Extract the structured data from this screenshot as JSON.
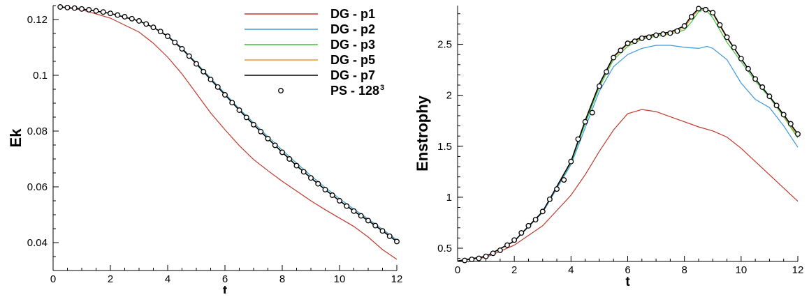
{
  "colors": {
    "DG - p1": "#c0392b",
    "DG - p2": "#3a9ad9",
    "DG - p3": "#3cc43c",
    "DG - p5": "#e8952f",
    "DG - p7": "#000000",
    "PS - 128": "#000000"
  },
  "chart_data": [
    {
      "type": "line",
      "xlabel": "t",
      "ylabel": "Ek",
      "xlim": [
        0,
        12
      ],
      "ylim": [
        0.03,
        0.125
      ],
      "xticks": [
        "0",
        "2",
        "4",
        "6",
        "8",
        "10",
        "12"
      ],
      "yticks": [
        "0.04",
        "0.06",
        "0.08",
        "0.1",
        "0.12"
      ],
      "grid": false,
      "legend": {
        "position": "top-right",
        "entries": [
          {
            "label": "DG - p1",
            "marker": "line"
          },
          {
            "label": "DG - p2",
            "marker": "line"
          },
          {
            "label": "DG - p3",
            "marker": "line"
          },
          {
            "label": "DG - p5",
            "marker": "line"
          },
          {
            "label": "DG - p7",
            "marker": "line"
          },
          {
            "label": "PS - 128",
            "sup": "3",
            "marker": "circle"
          }
        ]
      },
      "series": [
        {
          "name": "DG - p1",
          "x": [
            0.25,
            1,
            2,
            3,
            3.5,
            4,
            4.5,
            5,
            5.5,
            6,
            6.5,
            7,
            7.5,
            8,
            8.5,
            9,
            9.5,
            10,
            10.5,
            11,
            11.5,
            12
          ],
          "y": [
            0.1245,
            0.1235,
            0.1205,
            0.1155,
            0.1115,
            0.1065,
            0.1005,
            0.0935,
            0.0865,
            0.0805,
            0.0748,
            0.0698,
            0.0658,
            0.062,
            0.0585,
            0.055,
            0.0518,
            0.0488,
            0.0458,
            0.042,
            0.0375,
            0.034
          ]
        },
        {
          "name": "DG - p2",
          "x": [
            0.25,
            1,
            2,
            3,
            3.5,
            4,
            4.5,
            5,
            5.5,
            6,
            6.5,
            7,
            7.5,
            8,
            8.5,
            9,
            9.5,
            10,
            10.5,
            11,
            11.5,
            12
          ],
          "y": [
            0.1245,
            0.1238,
            0.1222,
            0.1195,
            0.1172,
            0.1142,
            0.1098,
            0.1045,
            0.099,
            0.0935,
            0.088,
            0.083,
            0.078,
            0.0732,
            0.0685,
            0.064,
            0.0598,
            0.0558,
            0.052,
            0.0485,
            0.0448,
            0.041
          ]
        },
        {
          "name": "DG - p3",
          "x": [
            0.25,
            1,
            2,
            3,
            3.5,
            4,
            4.5,
            5,
            5.5,
            6,
            6.5,
            7,
            7.5,
            8,
            8.5,
            9,
            9.5,
            10,
            10.5,
            11,
            11.5,
            12
          ],
          "y": [
            0.1245,
            0.1238,
            0.1222,
            0.1195,
            0.1172,
            0.114,
            0.1096,
            0.1042,
            0.0986,
            0.0931,
            0.0876,
            0.0824,
            0.0774,
            0.0725,
            0.0677,
            0.0633,
            0.0591,
            0.0551,
            0.0514,
            0.048,
            0.0443,
            0.0405
          ]
        },
        {
          "name": "DG - p5",
          "x": [
            0.25,
            1,
            2,
            3,
            3.5,
            4,
            4.5,
            5,
            5.5,
            6,
            6.5,
            7,
            7.5,
            8,
            8.5,
            9,
            9.5,
            10,
            10.5,
            11,
            11.5,
            12
          ],
          "y": [
            0.1245,
            0.1238,
            0.1222,
            0.1195,
            0.1172,
            0.114,
            0.1095,
            0.1041,
            0.0985,
            0.093,
            0.0875,
            0.0823,
            0.0773,
            0.0724,
            0.0676,
            0.0632,
            0.059,
            0.055,
            0.0513,
            0.0479,
            0.0442,
            0.0404
          ]
        },
        {
          "name": "DG - p7",
          "x": [
            0.25,
            1,
            2,
            3,
            3.5,
            4,
            4.5,
            5,
            5.5,
            6,
            6.5,
            7,
            7.5,
            8,
            8.5,
            9,
            9.5,
            10,
            10.5,
            11,
            11.5,
            12
          ],
          "y": [
            0.1245,
            0.1238,
            0.1222,
            0.1195,
            0.1172,
            0.114,
            0.1095,
            0.1041,
            0.0985,
            0.093,
            0.0875,
            0.0823,
            0.0773,
            0.0724,
            0.0676,
            0.0632,
            0.059,
            0.055,
            0.0513,
            0.0479,
            0.0442,
            0.0404
          ]
        },
        {
          "name": "PS - 128",
          "marker": "circle",
          "x": [
            0.25,
            0.5,
            0.75,
            1,
            1.25,
            1.5,
            1.75,
            2,
            2.25,
            2.5,
            2.75,
            3,
            3.25,
            3.5,
            3.75,
            4,
            4.25,
            4.5,
            4.75,
            5,
            5.25,
            5.5,
            5.75,
            6,
            6.25,
            6.5,
            6.75,
            7,
            7.25,
            7.5,
            7.75,
            8,
            8.25,
            8.5,
            8.75,
            9,
            9.25,
            9.5,
            9.75,
            10,
            10.25,
            10.5,
            10.75,
            11,
            11.25,
            11.5,
            11.75,
            12
          ],
          "y": [
            0.1245,
            0.1243,
            0.1241,
            0.1238,
            0.1235,
            0.1231,
            0.1227,
            0.1222,
            0.1216,
            0.121,
            0.1203,
            0.1195,
            0.1184,
            0.1172,
            0.1157,
            0.114,
            0.1118,
            0.1095,
            0.1069,
            0.1041,
            0.1013,
            0.0985,
            0.0958,
            0.093,
            0.0902,
            0.0875,
            0.0849,
            0.0823,
            0.0798,
            0.0773,
            0.0749,
            0.0724,
            0.07,
            0.0676,
            0.0654,
            0.0632,
            0.0611,
            0.059,
            0.057,
            0.055,
            0.0531,
            0.0513,
            0.0496,
            0.0479,
            0.0461,
            0.0442,
            0.0423,
            0.0404
          ]
        }
      ]
    },
    {
      "type": "line",
      "xlabel": "t",
      "ylabel": "Enstrophy",
      "xlim": [
        0,
        12
      ],
      "ylim": [
        0.37,
        2.88
      ],
      "xticks": [
        "0",
        "2",
        "4",
        "6",
        "8",
        "10",
        "12"
      ],
      "yticks": [
        "0.5",
        "1",
        "1.5",
        "2",
        "2.5"
      ],
      "grid": false,
      "series": [
        {
          "name": "DG - p1",
          "x": [
            0,
            1,
            2,
            3,
            4,
            4.5,
            5,
            5.5,
            6,
            6.5,
            7,
            7.5,
            8,
            8.5,
            9,
            9.5,
            10,
            10.5,
            11,
            11.5,
            12
          ],
          "y": [
            0.375,
            0.41,
            0.53,
            0.72,
            1.02,
            1.22,
            1.45,
            1.66,
            1.82,
            1.86,
            1.84,
            1.79,
            1.74,
            1.69,
            1.65,
            1.59,
            1.48,
            1.35,
            1.22,
            1.09,
            0.96
          ]
        },
        {
          "name": "DG - p2",
          "x": [
            0,
            1,
            2,
            3,
            4,
            4.5,
            5,
            5.5,
            6,
            6.5,
            7,
            7.5,
            8,
            8.5,
            8.8,
            9,
            9.5,
            10,
            10.5,
            11,
            11.5,
            12
          ],
          "y": [
            0.375,
            0.42,
            0.57,
            0.85,
            1.32,
            1.68,
            2.04,
            2.28,
            2.4,
            2.46,
            2.49,
            2.49,
            2.47,
            2.46,
            2.48,
            2.46,
            2.35,
            2.12,
            1.96,
            1.88,
            1.7,
            1.49
          ]
        },
        {
          "name": "DG - p3",
          "x": [
            0,
            1,
            2,
            3,
            4,
            4.5,
            5,
            5.5,
            6,
            6.5,
            7,
            7.5,
            8,
            8.25,
            8.5,
            8.75,
            9,
            9.5,
            10,
            10.5,
            11,
            11.5,
            12
          ],
          "y": [
            0.375,
            0.42,
            0.57,
            0.86,
            1.34,
            1.72,
            2.08,
            2.35,
            2.48,
            2.55,
            2.58,
            2.6,
            2.64,
            2.72,
            2.82,
            2.84,
            2.76,
            2.52,
            2.33,
            2.14,
            1.98,
            1.79,
            1.58
          ]
        },
        {
          "name": "DG - p5",
          "x": [
            0,
            1,
            2,
            3,
            4,
            4.5,
            5,
            5.5,
            6,
            6.5,
            7,
            7.5,
            8,
            8.25,
            8.5,
            8.75,
            9,
            9.5,
            10,
            10.5,
            11,
            11.5,
            12
          ],
          "y": [
            0.375,
            0.42,
            0.57,
            0.86,
            1.35,
            1.75,
            2.1,
            2.37,
            2.5,
            2.56,
            2.59,
            2.61,
            2.66,
            2.76,
            2.84,
            2.85,
            2.8,
            2.56,
            2.36,
            2.16,
            1.99,
            1.8,
            1.6
          ]
        },
        {
          "name": "DG - p7",
          "x": [
            0,
            1,
            2,
            3,
            4,
            4.5,
            5,
            5.5,
            6,
            6.5,
            7,
            7.5,
            8,
            8.25,
            8.5,
            8.75,
            9,
            9.5,
            10,
            10.5,
            11,
            11.5,
            12
          ],
          "y": [
            0.375,
            0.42,
            0.57,
            0.86,
            1.35,
            1.75,
            2.11,
            2.38,
            2.51,
            2.57,
            2.6,
            2.62,
            2.68,
            2.78,
            2.85,
            2.85,
            2.81,
            2.57,
            2.36,
            2.16,
            1.99,
            1.81,
            1.62
          ]
        },
        {
          "name": "PS - 128",
          "marker": "circle",
          "x": [
            0.25,
            0.5,
            0.75,
            1,
            1.25,
            1.5,
            1.75,
            2,
            2.25,
            2.5,
            2.75,
            3,
            3.25,
            3.5,
            3.75,
            4,
            4.25,
            4.5,
            4.75,
            5,
            5.25,
            5.5,
            5.75,
            6,
            6.25,
            6.5,
            6.75,
            7,
            7.25,
            7.5,
            7.75,
            8,
            8.25,
            8.5,
            8.75,
            9,
            9.25,
            9.5,
            9.75,
            10,
            10.25,
            10.5,
            10.75,
            11,
            11.25,
            11.5,
            11.75,
            12
          ],
          "y": [
            0.38,
            0.39,
            0.4,
            0.42,
            0.45,
            0.48,
            0.53,
            0.58,
            0.65,
            0.72,
            0.78,
            0.86,
            0.98,
            1.08,
            1.17,
            1.35,
            1.57,
            1.74,
            1.83,
            2.09,
            2.23,
            2.37,
            2.44,
            2.51,
            2.53,
            2.56,
            2.57,
            2.59,
            2.6,
            2.61,
            2.63,
            2.68,
            2.77,
            2.85,
            2.84,
            2.81,
            2.69,
            2.57,
            2.47,
            2.36,
            2.26,
            2.16,
            2.08,
            1.99,
            1.9,
            1.81,
            1.72,
            1.62
          ]
        }
      ]
    }
  ]
}
